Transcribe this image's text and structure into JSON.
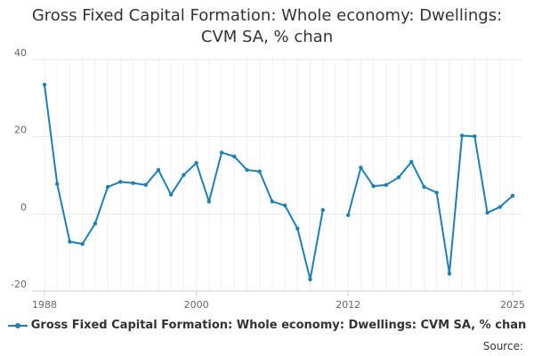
{
  "chart_data": {
    "type": "line",
    "title": "Gross Fixed Capital Formation: Whole economy: Dwellings: CVM SA, % chan",
    "title_lines": [
      "Gross Fixed Capital Formation: Whole economy: Dwellings:",
      "CVM SA, % chan"
    ],
    "xlabel": "",
    "ylabel": "",
    "xlim": [
      1988,
      2025
    ],
    "ylim": [
      -20,
      40
    ],
    "x_ticks": [
      1988,
      2000,
      2012,
      2025
    ],
    "x_tick_labels": [
      "1988",
      "2000",
      "2012",
      "2025"
    ],
    "y_ticks": [
      -20,
      0,
      20,
      40
    ],
    "y_tick_labels": [
      "-20",
      "0",
      "20",
      "40"
    ],
    "grid": true,
    "legend_position": "bottom",
    "series": [
      {
        "name": "Gross Fixed Capital Formation: Whole economy: Dwellings: CVM SA, % chan",
        "color": "#1f7fb5",
        "x": [
          1988,
          1989,
          1990,
          1991,
          1992,
          1993,
          1994,
          1995,
          1996,
          1997,
          1998,
          1999,
          2000,
          2001,
          2002,
          2003,
          2004,
          2005,
          2006,
          2007,
          2008,
          2009,
          2010,
          2011,
          2012,
          2013,
          2014,
          2015,
          2016,
          2017,
          2018,
          2019,
          2020,
          2021,
          2022,
          2023,
          2024,
          2025
        ],
        "values": [
          33.5,
          7.8,
          -7.2,
          -7.8,
          -2.5,
          7.0,
          8.3,
          8.0,
          7.5,
          11.4,
          5.0,
          10.1,
          13.2,
          3.2,
          15.9,
          14.9,
          11.4,
          11.0,
          3.2,
          2.2,
          -3.8,
          -17.0,
          1.0,
          null,
          -0.3,
          12.0,
          7.2,
          7.5,
          9.5,
          13.5,
          7.0,
          5.5,
          -15.5,
          20.3,
          20.1,
          0.3,
          1.8,
          4.7
        ]
      }
    ]
  },
  "legend": {
    "label": "Gross Fixed Capital Formation: Whole economy: Dwellings: CVM SA, % chan"
  },
  "footer": {
    "source_label": "Source:"
  }
}
